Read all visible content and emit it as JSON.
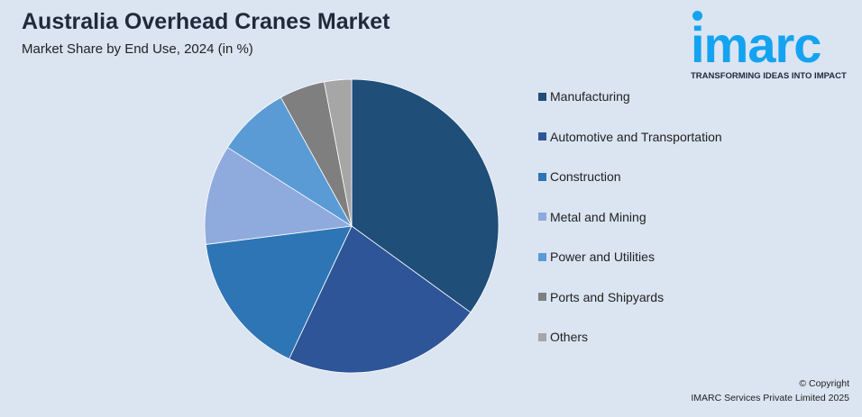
{
  "header": {
    "title": "Australia Overhead Cranes Market",
    "subtitle": "Market Share by End Use, 2024 (in %)"
  },
  "logo": {
    "text": "imarc",
    "tagline": "TRANSFORMING IDEAS INTO IMPACT",
    "color": "#13a3f0"
  },
  "footer": {
    "copyright": "© Copyright",
    "company": "IMARC Services Private Limited 2025"
  },
  "chart_data": {
    "type": "pie",
    "title": "Australia Overhead Cranes Market",
    "subtitle": "Market Share by End Use, 2024 (in %)",
    "legend_position": "right",
    "start": "top, clockwise",
    "slices": [
      {
        "name": "Manufacturing",
        "value": 35,
        "color": "#1f4e79"
      },
      {
        "name": "Automotive and Transportation",
        "value": 22,
        "color": "#2e5597"
      },
      {
        "name": "Construction",
        "value": 16,
        "color": "#2e75b6"
      },
      {
        "name": "Metal and Mining",
        "value": 11,
        "color": "#8faadc"
      },
      {
        "name": "Power and Utilities",
        "value": 8,
        "color": "#5b9bd5"
      },
      {
        "name": "Ports and Shipyards",
        "value": 5,
        "color": "#7f7f7f"
      },
      {
        "name": "Others",
        "value": 3,
        "color": "#a6a6a6"
      }
    ]
  }
}
